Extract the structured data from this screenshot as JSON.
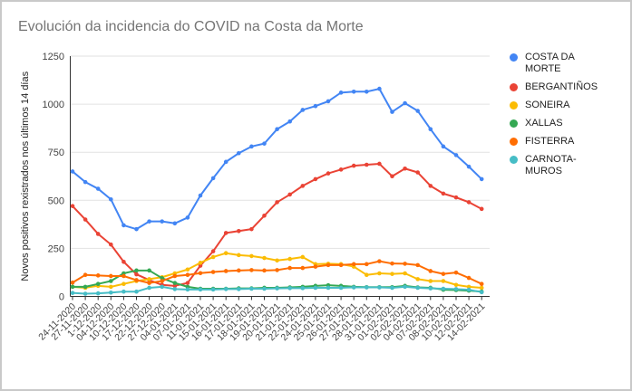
{
  "chart_data": {
    "type": "line",
    "title": "Evolución da incidencia do COVID na Costa da Morte",
    "xlabel": "",
    "ylabel": "Novos positivos rexistrados nos últimos 14 días",
    "ylim": [
      0,
      1250
    ],
    "yticks": [
      0,
      250,
      500,
      750,
      1000,
      1250
    ],
    "grid": true,
    "legend_position": "right",
    "categories": [
      "24-11-2020",
      "27-11-2020",
      "1-12-2020",
      "04-12-2020",
      "10-12-2020",
      "17-12-2020",
      "22-12-2020",
      "27-12-2020",
      "04-01-2021",
      "07-01-2021",
      "11-01-2021",
      "15-01-2021",
      "16-01-2021",
      "17-01-2021",
      "18-01-2021",
      "19-01-2021",
      "20-01-2021",
      "21-01-2021",
      "22-01-2021",
      "24-01-2021",
      "25-01-2021",
      "26-01-2021",
      "27-01-2021",
      "28-01-2021",
      "31-01-2021",
      "01-02-2021",
      "02-02-2021",
      "04-02-2021",
      "07-02-2021",
      "08-02-2021",
      "10-02-2021",
      "12-02-2021",
      "14-02-2021"
    ],
    "series": [
      {
        "name": "COSTA DA MORTE",
        "color": "#4285F4",
        "values": [
          650,
          595,
          560,
          505,
          370,
          350,
          390,
          390,
          380,
          410,
          525,
          615,
          700,
          745,
          780,
          795,
          870,
          910,
          970,
          990,
          1015,
          1060,
          1065,
          1065,
          1080,
          960,
          1005,
          965,
          870,
          780,
          735,
          675,
          610
        ]
      },
      {
        "name": "BERGANTIÑOS",
        "color": "#EA4335",
        "values": [
          470,
          400,
          325,
          270,
          180,
          115,
          85,
          60,
          55,
          70,
          160,
          235,
          330,
          340,
          350,
          420,
          490,
          530,
          575,
          610,
          640,
          660,
          680,
          685,
          690,
          625,
          665,
          645,
          575,
          535,
          515,
          490,
          455
        ]
      },
      {
        "name": "SONEIRA",
        "color": "#FBBC04",
        "values": [
          50,
          45,
          55,
          50,
          65,
          80,
          90,
          100,
          120,
          140,
          175,
          205,
          225,
          215,
          210,
          200,
          187,
          195,
          205,
          168,
          170,
          168,
          155,
          112,
          120,
          117,
          120,
          90,
          80,
          80,
          60,
          50,
          45
        ]
      },
      {
        "name": "XALLAS",
        "color": "#34A853",
        "values": [
          50,
          50,
          65,
          80,
          120,
          135,
          135,
          95,
          70,
          50,
          40,
          40,
          40,
          42,
          42,
          45,
          45,
          47,
          50,
          55,
          58,
          55,
          50,
          48,
          48,
          48,
          55,
          47,
          45,
          35,
          33,
          30,
          25
        ]
      },
      {
        "name": "FISTERRA",
        "color": "#FF6D01",
        "values": [
          72,
          112,
          109,
          106,
          106,
          85,
          70,
          80,
          106,
          112,
          121,
          127,
          132,
          135,
          137,
          135,
          137,
          148,
          148,
          155,
          163,
          163,
          168,
          168,
          183,
          171,
          170,
          163,
          132,
          117,
          124,
          96,
          65
        ]
      },
      {
        "name": "CARNOTA-MUROS",
        "color": "#46BDC6",
        "values": [
          18,
          14,
          16,
          20,
          25,
          25,
          45,
          50,
          38,
          36,
          36,
          36,
          38,
          38,
          40,
          40,
          42,
          43,
          43,
          45,
          45,
          45,
          47,
          47,
          47,
          45,
          50,
          45,
          42,
          40,
          38,
          35,
          22
        ]
      }
    ],
    "axis_colors": {
      "axis_line": "#333333",
      "tick_text": "#444444",
      "gridline": "#e2e2e2",
      "ylabel_text": "#222222"
    }
  }
}
